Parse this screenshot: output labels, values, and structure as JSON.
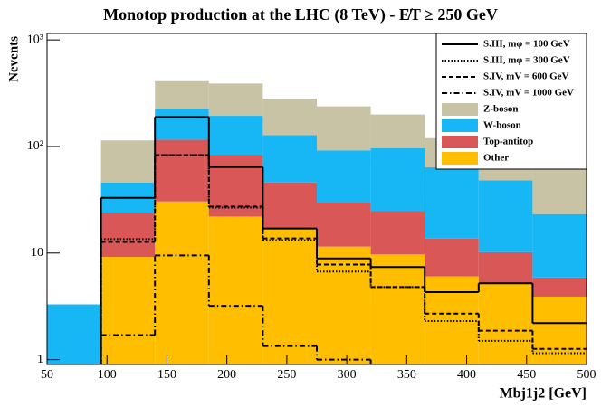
{
  "chart_data": {
    "type": "stacked_histogram",
    "title": "Monotop production at the LHC (8 TeV) - E̸T ≥ 250 GeV",
    "x_label": "Mbj1j2 [GeV]",
    "y_label": "Nevents",
    "log_y": true,
    "bins": [
      50,
      95,
      140,
      185,
      230,
      275,
      320,
      365,
      410,
      455,
      500
    ],
    "xlim": [
      50,
      500
    ],
    "xticks": [
      50,
      100,
      150,
      200,
      250,
      300,
      350,
      400,
      450,
      500
    ],
    "ylim": [
      0.9,
      1150
    ],
    "yticks": [
      1,
      10,
      {
        "value": 100,
        "label": "10²"
      },
      {
        "value": 1000,
        "label": "10³"
      }
    ],
    "legend": "upper right",
    "series": [
      {
        "name": "Other",
        "color": "#ffbf00",
        "values": [
          0,
          9.2,
          30.5,
          22,
          16.7,
          11.5,
          9.7,
          6.05,
          5.2,
          3.9
        ]
      },
      {
        "name": "Top-antitop",
        "color": "#d95757",
        "values": [
          0,
          14.5,
          85.5,
          61,
          29.3,
          18.5,
          15,
          7.65,
          5,
          2
        ]
      },
      {
        "name": "W-boson",
        "color": "#17b6f5",
        "values": [
          3.3,
          22.3,
          110,
          111,
          82,
          62,
          72,
          50,
          38,
          17.3
        ]
      },
      {
        "name": "Z-boson",
        "color": "#c9c3a5",
        "values": [
          0,
          68,
          184,
          196,
          152,
          146,
          103,
          56,
          35,
          78
        ]
      }
    ],
    "lines": [
      {
        "name": "S.III, mφ = 100 GeV",
        "color": "#000000",
        "dash": "solid",
        "values": [
          null,
          33,
          189,
          64,
          17,
          8.9,
          7.4,
          4.3,
          5.2,
          2.2
        ]
      },
      {
        "name": "S.III, mφ = 300 GeV",
        "color": "#000000",
        "dash": "dotted",
        "values": [
          null,
          13.5,
          83,
          26.7,
          13.2,
          6.7,
          4.8,
          2.3,
          1.5,
          1.15
        ]
      },
      {
        "name": "S.IV, mV = 600 GeV",
        "color": "#000000",
        "dash": "dashed",
        "values": [
          null,
          12.7,
          83,
          27.3,
          13.7,
          7.8,
          4.8,
          2.7,
          1.87,
          1.26
        ]
      },
      {
        "name": "S.IV, mV = 1000 GeV",
        "color": "#000000",
        "dash": "dashdot",
        "values": [
          null,
          1.7,
          9.5,
          3.2,
          1.34,
          1.0,
          null,
          null,
          null,
          null
        ]
      }
    ]
  }
}
